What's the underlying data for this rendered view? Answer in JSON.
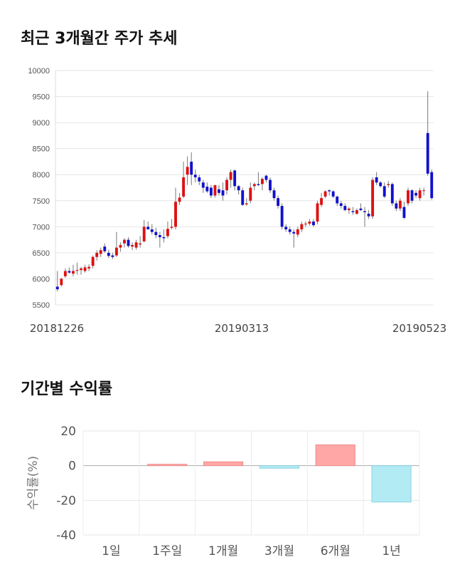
{
  "sections": {
    "price_title": "최근 3개월간 주가 추세",
    "return_title": "기간별 수익률"
  },
  "chart_data": [
    {
      "type": "candlestick",
      "ylim": [
        5500,
        10000
      ],
      "yticks": [
        5500,
        6000,
        6500,
        7000,
        7500,
        8000,
        8500,
        9000,
        9500,
        10000
      ],
      "xlabels": [
        "20181226",
        "20190313",
        "20190523"
      ],
      "grid": true,
      "up_color": "#dd1111",
      "down_color": "#1111cc",
      "candles": [
        {
          "o": 5850,
          "h": 6150,
          "l": 5760,
          "c": 5800
        },
        {
          "o": 5880,
          "h": 6020,
          "l": 5850,
          "c": 6000
        },
        {
          "o": 6050,
          "h": 6200,
          "l": 6020,
          "c": 6150
        },
        {
          "o": 6150,
          "h": 6220,
          "l": 6100,
          "c": 6120
        },
        {
          "o": 6100,
          "h": 6270,
          "l": 6050,
          "c": 6150
        },
        {
          "o": 6160,
          "h": 6310,
          "l": 6080,
          "c": 6170
        },
        {
          "o": 6170,
          "h": 6230,
          "l": 6080,
          "c": 6200
        },
        {
          "o": 6150,
          "h": 6270,
          "l": 6120,
          "c": 6220
        },
        {
          "o": 6200,
          "h": 6280,
          "l": 6150,
          "c": 6230
        },
        {
          "o": 6250,
          "h": 6450,
          "l": 6200,
          "c": 6420
        },
        {
          "o": 6420,
          "h": 6550,
          "l": 6350,
          "c": 6500
        },
        {
          "o": 6480,
          "h": 6600,
          "l": 6420,
          "c": 6550
        },
        {
          "o": 6620,
          "h": 6680,
          "l": 6500,
          "c": 6530
        },
        {
          "o": 6500,
          "h": 6560,
          "l": 6400,
          "c": 6440
        },
        {
          "o": 6450,
          "h": 6500,
          "l": 6380,
          "c": 6420
        },
        {
          "o": 6450,
          "h": 6900,
          "l": 6420,
          "c": 6600
        },
        {
          "o": 6600,
          "h": 6700,
          "l": 6520,
          "c": 6650
        },
        {
          "o": 6680,
          "h": 6780,
          "l": 6600,
          "c": 6750
        },
        {
          "o": 6750,
          "h": 6800,
          "l": 6600,
          "c": 6630
        },
        {
          "o": 6620,
          "h": 6700,
          "l": 6550,
          "c": 6650
        },
        {
          "o": 6600,
          "h": 6750,
          "l": 6560,
          "c": 6700
        },
        {
          "o": 6660,
          "h": 6820,
          "l": 6600,
          "c": 6680
        },
        {
          "o": 6720,
          "h": 7130,
          "l": 6700,
          "c": 7000
        },
        {
          "o": 7000,
          "h": 7100,
          "l": 6950,
          "c": 6950
        },
        {
          "o": 6950,
          "h": 7050,
          "l": 6850,
          "c": 6900
        },
        {
          "o": 6900,
          "h": 6980,
          "l": 6780,
          "c": 6840
        },
        {
          "o": 6840,
          "h": 6900,
          "l": 6600,
          "c": 6800
        },
        {
          "o": 6800,
          "h": 6950,
          "l": 6700,
          "c": 6780
        },
        {
          "o": 6820,
          "h": 7100,
          "l": 6780,
          "c": 6960
        },
        {
          "o": 6980,
          "h": 7150,
          "l": 6950,
          "c": 7000
        },
        {
          "o": 7000,
          "h": 7750,
          "l": 6950,
          "c": 7480
        },
        {
          "o": 7480,
          "h": 7650,
          "l": 7420,
          "c": 7560
        },
        {
          "o": 7580,
          "h": 8250,
          "l": 7550,
          "c": 7950
        },
        {
          "o": 8000,
          "h": 8350,
          "l": 7800,
          "c": 8150
        },
        {
          "o": 8250,
          "h": 8430,
          "l": 7800,
          "c": 8000
        },
        {
          "o": 8000,
          "h": 8100,
          "l": 7850,
          "c": 7950
        },
        {
          "o": 7950,
          "h": 8000,
          "l": 7800,
          "c": 7870
        },
        {
          "o": 7850,
          "h": 7900,
          "l": 7650,
          "c": 7750
        },
        {
          "o": 7770,
          "h": 7850,
          "l": 7650,
          "c": 7680
        },
        {
          "o": 7750,
          "h": 7800,
          "l": 7550,
          "c": 7600
        },
        {
          "o": 7600,
          "h": 7800,
          "l": 7560,
          "c": 7800
        },
        {
          "o": 7720,
          "h": 7800,
          "l": 7600,
          "c": 7650
        },
        {
          "o": 7700,
          "h": 7850,
          "l": 7500,
          "c": 7600
        },
        {
          "o": 7700,
          "h": 7950,
          "l": 7620,
          "c": 7900
        },
        {
          "o": 7900,
          "h": 8100,
          "l": 7750,
          "c": 8050
        },
        {
          "o": 8080,
          "h": 8100,
          "l": 7700,
          "c": 7780
        },
        {
          "o": 7780,
          "h": 7800,
          "l": 7620,
          "c": 7700
        },
        {
          "o": 7700,
          "h": 7750,
          "l": 7400,
          "c": 7420
        },
        {
          "o": 7430,
          "h": 7550,
          "l": 7400,
          "c": 7450
        },
        {
          "o": 7500,
          "h": 7850,
          "l": 7450,
          "c": 7750
        },
        {
          "o": 7780,
          "h": 7850,
          "l": 7700,
          "c": 7820
        },
        {
          "o": 7820,
          "h": 8050,
          "l": 7780,
          "c": 7800
        },
        {
          "o": 7820,
          "h": 7950,
          "l": 7700,
          "c": 7920
        },
        {
          "o": 7980,
          "h": 8000,
          "l": 7850,
          "c": 7900
        },
        {
          "o": 7900,
          "h": 7950,
          "l": 7650,
          "c": 7700
        },
        {
          "o": 7700,
          "h": 7750,
          "l": 7500,
          "c": 7550
        },
        {
          "o": 7550,
          "h": 7600,
          "l": 7350,
          "c": 7400
        },
        {
          "o": 7400,
          "h": 7450,
          "l": 6950,
          "c": 7000
        },
        {
          "o": 7000,
          "h": 7050,
          "l": 6900,
          "c": 6950
        },
        {
          "o": 6950,
          "h": 7000,
          "l": 6850,
          "c": 6900
        },
        {
          "o": 6900,
          "h": 6950,
          "l": 6600,
          "c": 6870
        },
        {
          "o": 6850,
          "h": 7000,
          "l": 6800,
          "c": 6950
        },
        {
          "o": 6950,
          "h": 7100,
          "l": 6900,
          "c": 7050
        },
        {
          "o": 7050,
          "h": 7100,
          "l": 7000,
          "c": 7060
        },
        {
          "o": 7060,
          "h": 7150,
          "l": 7020,
          "c": 7100
        },
        {
          "o": 7100,
          "h": 7150,
          "l": 7000,
          "c": 7030
        },
        {
          "o": 7100,
          "h": 7500,
          "l": 7050,
          "c": 7450
        },
        {
          "o": 7420,
          "h": 7650,
          "l": 7380,
          "c": 7550
        },
        {
          "o": 7580,
          "h": 7700,
          "l": 7550,
          "c": 7680
        },
        {
          "o": 7700,
          "h": 7720,
          "l": 7600,
          "c": 7680
        },
        {
          "o": 7680,
          "h": 7700,
          "l": 7550,
          "c": 7580
        },
        {
          "o": 7580,
          "h": 7600,
          "l": 7400,
          "c": 7450
        },
        {
          "o": 7450,
          "h": 7500,
          "l": 7350,
          "c": 7400
        },
        {
          "o": 7400,
          "h": 7450,
          "l": 7300,
          "c": 7320
        },
        {
          "o": 7320,
          "h": 7380,
          "l": 7250,
          "c": 7350
        },
        {
          "o": 7300,
          "h": 7380,
          "l": 7230,
          "c": 7280
        },
        {
          "o": 7250,
          "h": 7350,
          "l": 7230,
          "c": 7320
        },
        {
          "o": 7350,
          "h": 7450,
          "l": 7300,
          "c": 7320
        },
        {
          "o": 7300,
          "h": 7380,
          "l": 7000,
          "c": 7280
        },
        {
          "o": 7250,
          "h": 7320,
          "l": 7150,
          "c": 7200
        },
        {
          "o": 7200,
          "h": 7950,
          "l": 7150,
          "c": 7900
        },
        {
          "o": 7950,
          "h": 8050,
          "l": 7800,
          "c": 7850
        },
        {
          "o": 7850,
          "h": 7880,
          "l": 7750,
          "c": 7780
        },
        {
          "o": 7780,
          "h": 7850,
          "l": 7550,
          "c": 7580
        },
        {
          "o": 7800,
          "h": 7880,
          "l": 7750,
          "c": 7820
        },
        {
          "o": 7820,
          "h": 7850,
          "l": 7400,
          "c": 7450
        },
        {
          "o": 7450,
          "h": 7500,
          "l": 7300,
          "c": 7350
        },
        {
          "o": 7350,
          "h": 7550,
          "l": 7300,
          "c": 7500
        },
        {
          "o": 7380,
          "h": 7480,
          "l": 7150,
          "c": 7170
        },
        {
          "o": 7450,
          "h": 7750,
          "l": 7400,
          "c": 7700
        },
        {
          "o": 7700,
          "h": 7720,
          "l": 7450,
          "c": 7500
        },
        {
          "o": 7650,
          "h": 7700,
          "l": 7550,
          "c": 7600
        },
        {
          "o": 7550,
          "h": 7750,
          "l": 7500,
          "c": 7700
        },
        {
          "o": 7700,
          "h": 7750,
          "l": 7600,
          "c": 7700
        },
        {
          "o": 8800,
          "h": 9600,
          "l": 7980,
          "c": 8020
        },
        {
          "o": 8050,
          "h": 8100,
          "l": 7520,
          "c": 7550
        }
      ]
    },
    {
      "type": "bar",
      "categories": [
        "1일",
        "1주일",
        "1개월",
        "3개월",
        "6개월",
        "1년"
      ],
      "values": [
        0.0,
        0.8,
        2.2,
        -1.5,
        12.0,
        -21.0
      ],
      "ylabel": "수익률(%)",
      "ylim": [
        -40,
        20
      ],
      "yticks": [
        -40,
        -20,
        0,
        20
      ],
      "grid": true,
      "positive_color": "#ffa7a7",
      "negative_color": "#b2ebf4"
    }
  ]
}
